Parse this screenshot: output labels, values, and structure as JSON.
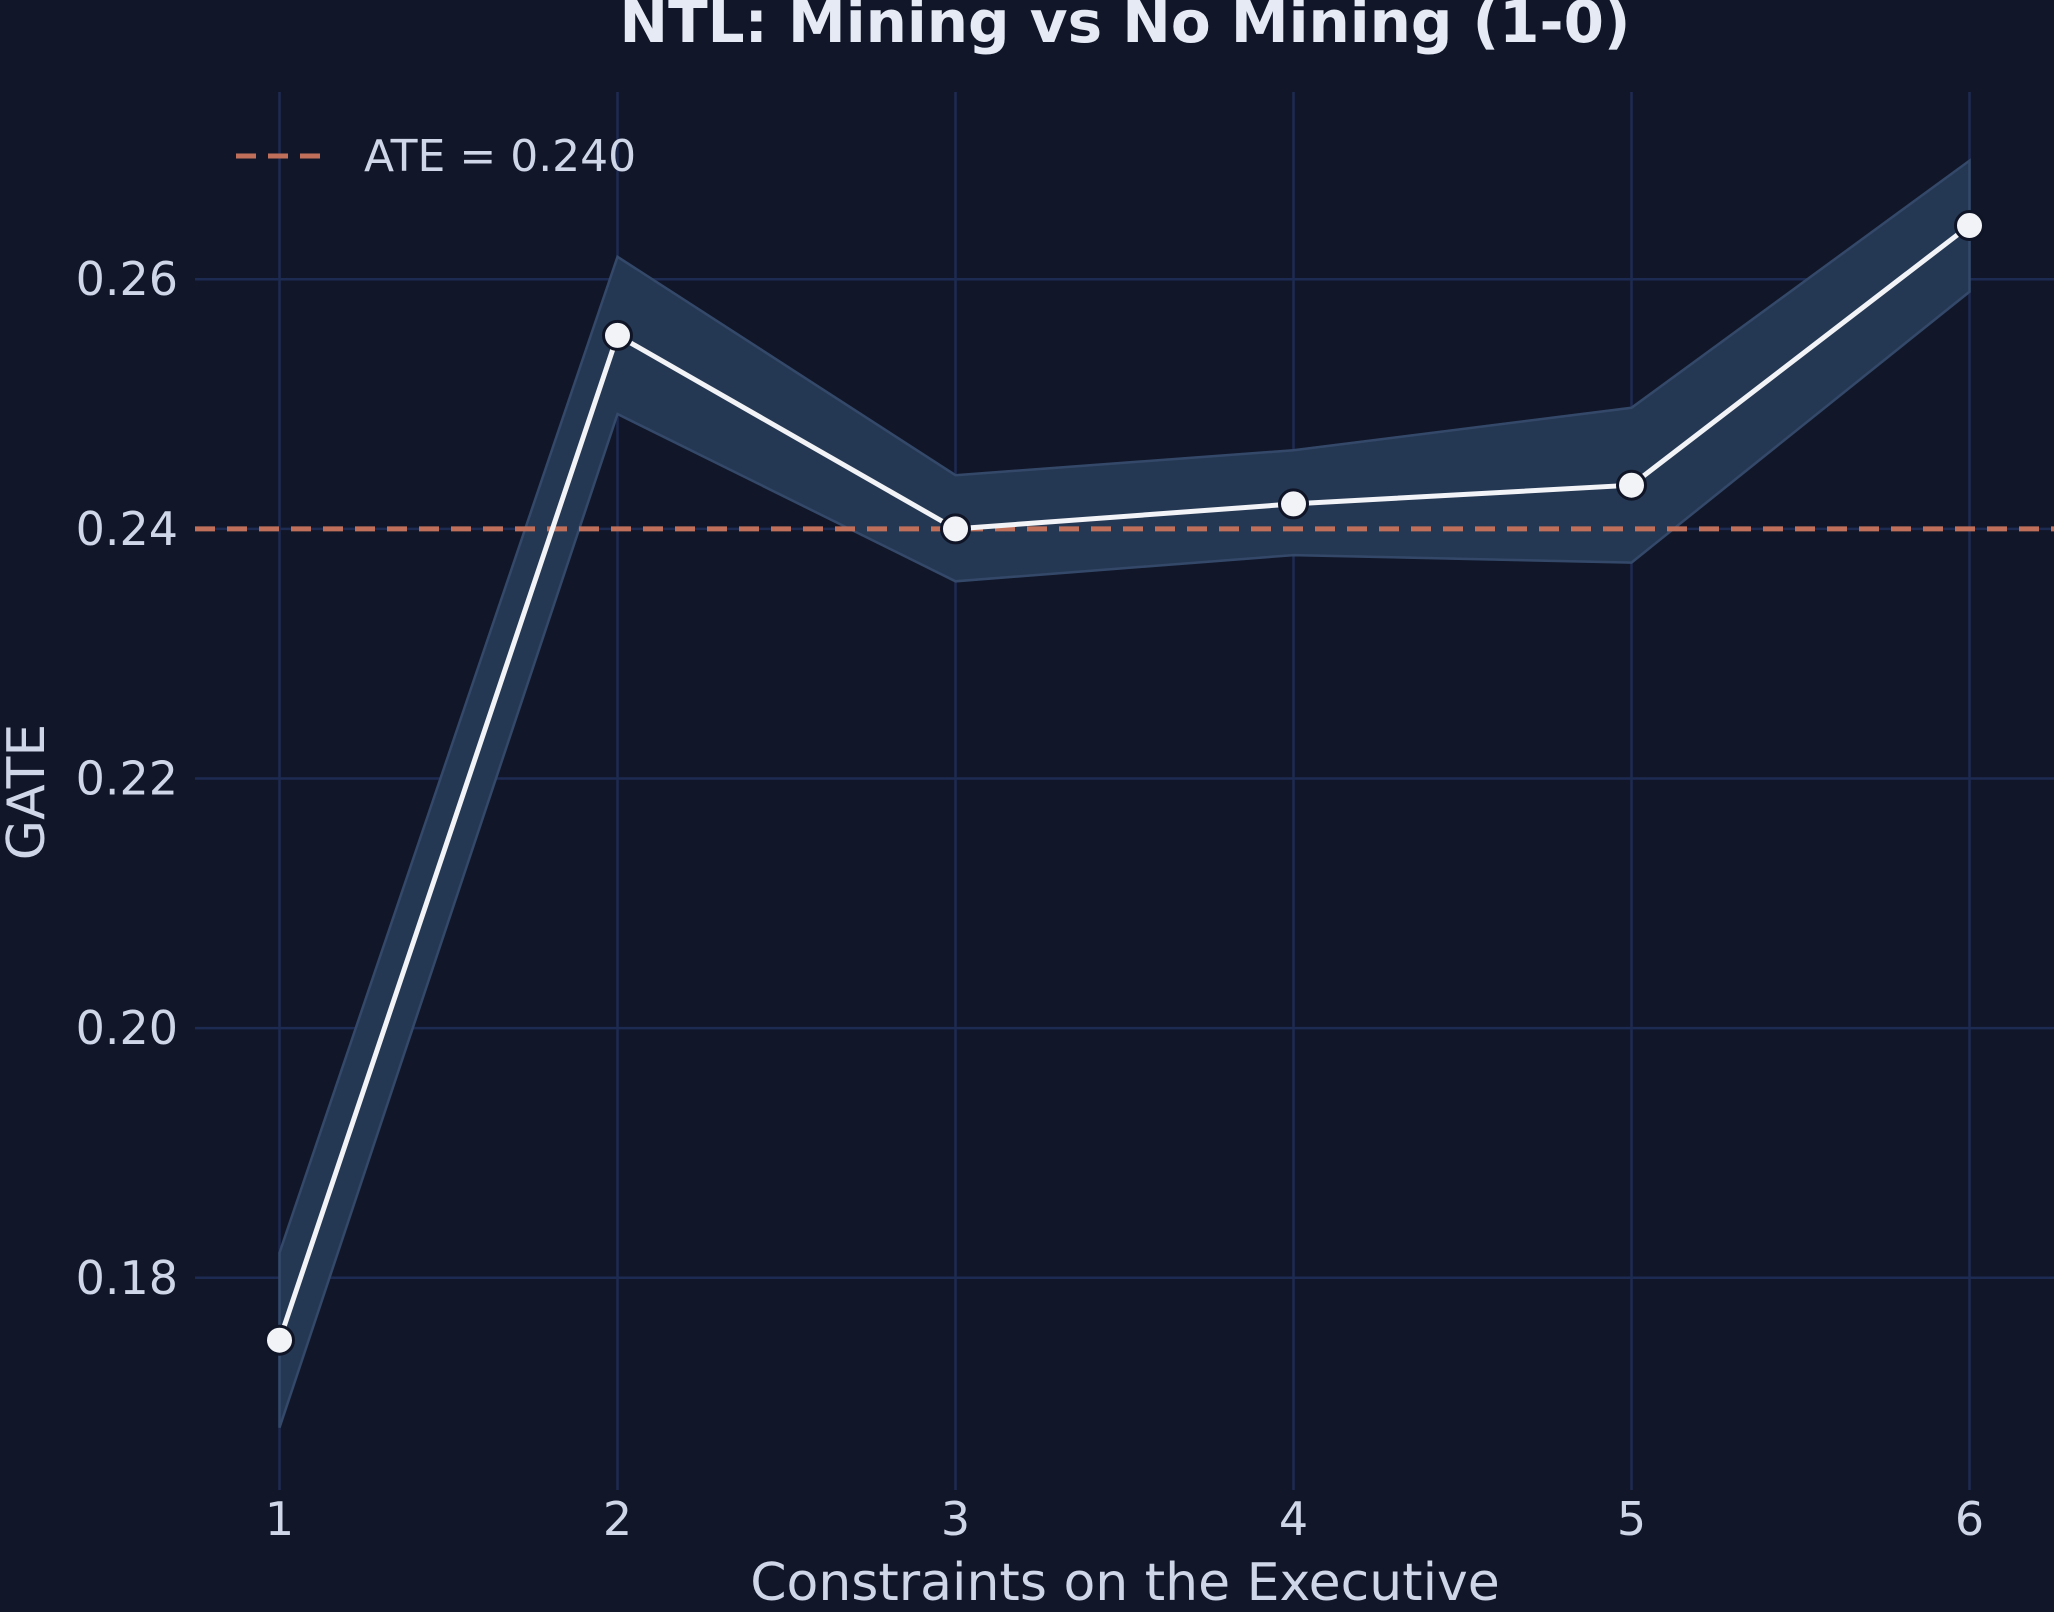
{
  "chart_data": {
    "type": "line",
    "title": "NTL: Mining vs No Mining (1-0)",
    "xlabel": "Constraints on the Executive",
    "ylabel": "GATE",
    "x": [
      1,
      2,
      3,
      4,
      5,
      6
    ],
    "x_ticks": [
      "1",
      "2",
      "3",
      "4",
      "5",
      "6"
    ],
    "y_ticks": [
      "0.18",
      "0.20",
      "0.22",
      "0.24",
      "0.26"
    ],
    "xlim": [
      0.75,
      6.25
    ],
    "ylim": [
      0.163,
      0.275
    ],
    "series": [
      {
        "values": [
          0.175,
          0.2555,
          0.24,
          0.242,
          0.2435,
          0.2643
        ],
        "ci_upper": [
          0.182,
          0.2618,
          0.2443,
          0.2463,
          0.2497,
          0.2695
        ],
        "ci_lower": [
          0.168,
          0.2492,
          0.2358,
          0.2379,
          0.2373,
          0.259
        ],
        "color": "#f2f3f7"
      }
    ],
    "reference_line": {
      "label": "ATE = 0.240",
      "value": 0.24,
      "color": "#c0705a",
      "style": "dashed"
    },
    "band_color": "#253853",
    "grid": true,
    "legend_position": "top-left"
  }
}
